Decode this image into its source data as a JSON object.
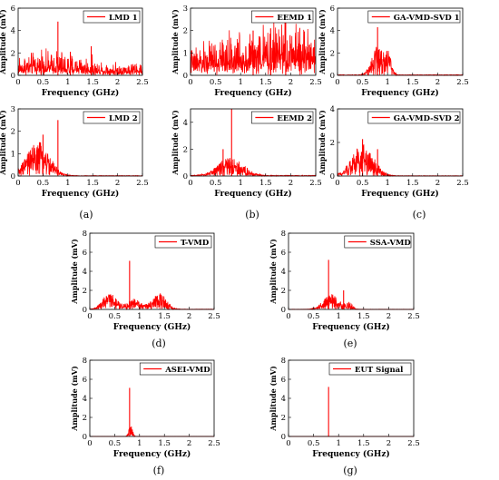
{
  "figure": {
    "xlabel": "Frequency (GHz)",
    "ylabel": "Amplitude (mV)",
    "xticks": [
      "0",
      "0.5",
      "1",
      "1.5",
      "2",
      "2.5"
    ]
  },
  "chart_data": [
    {
      "id": "lmd1",
      "type": "line",
      "panel": "(a)",
      "legend": "LMD 1",
      "ylim": [
        0,
        6
      ],
      "yticks": [
        "0",
        "2",
        "4",
        "6"
      ],
      "xlim": [
        0,
        2.5
      ],
      "xlabel": "Frequency (GHz)",
      "ylabel": "Amplitude (mV)",
      "noise": "broad",
      "floor": 0.4,
      "spread": 0.7,
      "peaks": [
        {
          "x": 0.8,
          "y": 4.8
        },
        {
          "x": 1.47,
          "y": 2.6
        },
        {
          "x": 1.05,
          "y": 2.1
        }
      ],
      "color": "#ff0000",
      "grid": false,
      "legend_position": "top-right"
    },
    {
      "id": "eemd1",
      "type": "line",
      "panel": "(b)",
      "legend": "EEMD 1",
      "ylim": [
        0,
        3
      ],
      "yticks": [
        "0",
        "1",
        "2",
        "3"
      ],
      "xlim": [
        0,
        2.5
      ],
      "xlabel": "Frequency (GHz)",
      "ylabel": "Amplitude (mV)",
      "noise": "rising",
      "floor": 0.3,
      "spread": 1.0,
      "peaks": [
        {
          "x": 1.9,
          "y": 2.6
        },
        {
          "x": 1.6,
          "y": 2.1
        },
        {
          "x": 1.25,
          "y": 2.0
        }
      ],
      "color": "#ff0000",
      "grid": false,
      "legend_position": "top-right"
    },
    {
      "id": "gavmd1",
      "type": "line",
      "panel": "(c)",
      "legend": "GA-VMD-SVD 1",
      "ylim": [
        0,
        6
      ],
      "yticks": [
        "0",
        "2",
        "4",
        "6"
      ],
      "xlim": [
        0,
        2.5
      ],
      "xlabel": "Frequency (GHz)",
      "ylabel": "Amplitude (mV)",
      "noise": "bumps",
      "floor": 0.05,
      "bumps": [
        {
          "c": 0.78,
          "w": 0.15,
          "h": 2.0
        },
        {
          "c": 1.0,
          "w": 0.1,
          "h": 1.5
        }
      ],
      "peaks": [
        {
          "x": 0.8,
          "y": 4.3
        }
      ],
      "color": "#ff0000",
      "grid": false,
      "legend_position": "top-right"
    },
    {
      "id": "lmd2",
      "type": "line",
      "panel": "(a)",
      "legend": "LMD 2",
      "ylim": [
        0,
        3
      ],
      "yticks": [
        "0",
        "1",
        "2",
        "3"
      ],
      "xlim": [
        0,
        2.5
      ],
      "xlabel": "Frequency (GHz)",
      "ylabel": "Amplitude (mV)",
      "noise": "bumps",
      "floor": 0.02,
      "bumps": [
        {
          "c": 0.4,
          "w": 0.32,
          "h": 1.1
        }
      ],
      "peaks": [
        {
          "x": 0.8,
          "y": 2.5
        },
        {
          "x": 0.5,
          "y": 1.85
        }
      ],
      "color": "#ff0000",
      "grid": false,
      "legend_position": "top-right"
    },
    {
      "id": "eemd2",
      "type": "line",
      "panel": "(b)",
      "legend": "EEMD 2",
      "ylim": [
        0,
        5
      ],
      "yticks": [
        "0",
        "2",
        "4"
      ],
      "xlim": [
        0,
        2.5
      ],
      "xlabel": "Frequency (GHz)",
      "ylabel": "Amplitude (mV)",
      "noise": "bumps",
      "floor": 0.05,
      "bumps": [
        {
          "c": 0.8,
          "w": 0.35,
          "h": 1.0
        }
      ],
      "peaks": [
        {
          "x": 0.82,
          "y": 5.0
        },
        {
          "x": 0.65,
          "y": 2.0
        }
      ],
      "color": "#ff0000",
      "grid": false,
      "legend_position": "top-right"
    },
    {
      "id": "gavmd2",
      "type": "line",
      "panel": "(c)",
      "legend": "GA-VMD-SVD 2",
      "ylim": [
        0,
        4
      ],
      "yticks": [
        "0",
        "2",
        "4"
      ],
      "xlim": [
        0,
        2.5
      ],
      "xlabel": "Frequency (GHz)",
      "ylabel": "Amplitude (mV)",
      "noise": "bumps",
      "floor": 0.02,
      "bumps": [
        {
          "c": 0.5,
          "w": 0.3,
          "h": 1.4
        }
      ],
      "peaks": [
        {
          "x": 0.5,
          "y": 2.2
        },
        {
          "x": 0.8,
          "y": 1.6
        }
      ],
      "color": "#ff0000",
      "grid": false,
      "legend_position": "top-right"
    },
    {
      "id": "tvmd",
      "type": "line",
      "panel": "(d)",
      "legend": "T-VMD",
      "ylim": [
        0,
        8
      ],
      "yticks": [
        "0",
        "2",
        "4",
        "6",
        "8"
      ],
      "xlim": [
        0,
        2.5
      ],
      "xlabel": "Frequency (GHz)",
      "ylabel": "Amplitude (mV)",
      "noise": "bumps",
      "floor": 0.03,
      "bumps": [
        {
          "c": 0.4,
          "w": 0.2,
          "h": 1.2
        },
        {
          "c": 1.4,
          "w": 0.2,
          "h": 1.2
        },
        {
          "c": 0.9,
          "w": 0.2,
          "h": 0.8
        }
      ],
      "peaks": [
        {
          "x": 0.8,
          "y": 5.1
        }
      ],
      "color": "#ff0000",
      "grid": false,
      "legend_position": "top-right"
    },
    {
      "id": "ssavmd",
      "type": "line",
      "panel": "(e)",
      "legend": "SSA-VMD",
      "ylim": [
        0,
        8
      ],
      "yticks": [
        "0",
        "2",
        "4",
        "6",
        "8"
      ],
      "xlim": [
        0,
        2.5
      ],
      "xlabel": "Frequency (GHz)",
      "ylabel": "Amplitude (mV)",
      "noise": "bumps",
      "floor": 0.02,
      "bumps": [
        {
          "c": 0.85,
          "w": 0.22,
          "h": 1.2
        },
        {
          "c": 1.2,
          "w": 0.1,
          "h": 0.5
        }
      ],
      "peaks": [
        {
          "x": 0.8,
          "y": 5.2
        },
        {
          "x": 1.1,
          "y": 2.0
        }
      ],
      "color": "#ff0000",
      "grid": false,
      "legend_position": "top-right"
    },
    {
      "id": "aseivmd",
      "type": "line",
      "panel": "(f)",
      "legend": "ASEI-VMD",
      "ylim": [
        0,
        8
      ],
      "yticks": [
        "0",
        "2",
        "4",
        "6",
        "8"
      ],
      "xlim": [
        0,
        2.5
      ],
      "xlabel": "Frequency (GHz)",
      "ylabel": "Amplitude (mV)",
      "noise": "bumps",
      "floor": 0.01,
      "bumps": [
        {
          "c": 0.82,
          "w": 0.05,
          "h": 1.0
        }
      ],
      "peaks": [
        {
          "x": 0.8,
          "y": 5.1
        }
      ],
      "color": "#ff0000",
      "grid": false,
      "legend_position": "top-right"
    },
    {
      "id": "eut",
      "type": "line",
      "panel": "(g)",
      "legend": "EUT Signal",
      "ylim": [
        0,
        8
      ],
      "yticks": [
        "0",
        "2",
        "4",
        "6",
        "8"
      ],
      "xlim": [
        0,
        2.5
      ],
      "xlabel": "Frequency (GHz)",
      "ylabel": "Amplitude (mV)",
      "noise": "none",
      "floor": 0.0,
      "peaks": [
        {
          "x": 0.8,
          "y": 5.2
        }
      ],
      "color": "#ff0000",
      "grid": false,
      "legend_position": "top-right"
    }
  ]
}
